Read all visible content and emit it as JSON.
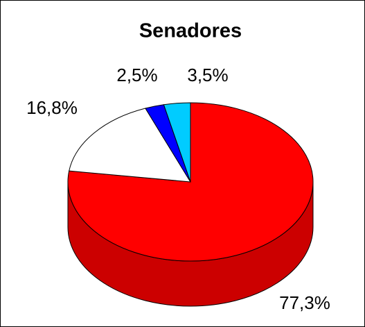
{
  "chart_data": {
    "type": "pie",
    "title": "Senadores",
    "pie_3d": true,
    "values": [
      77.3,
      16.8,
      2.5,
      3.5
    ],
    "value_labels": [
      "77,3%",
      "16,8%",
      "2,5%",
      "3,5%"
    ],
    "colors": [
      "#ff0000",
      "#ffffff",
      "#0000ff",
      "#00ccff"
    ]
  }
}
